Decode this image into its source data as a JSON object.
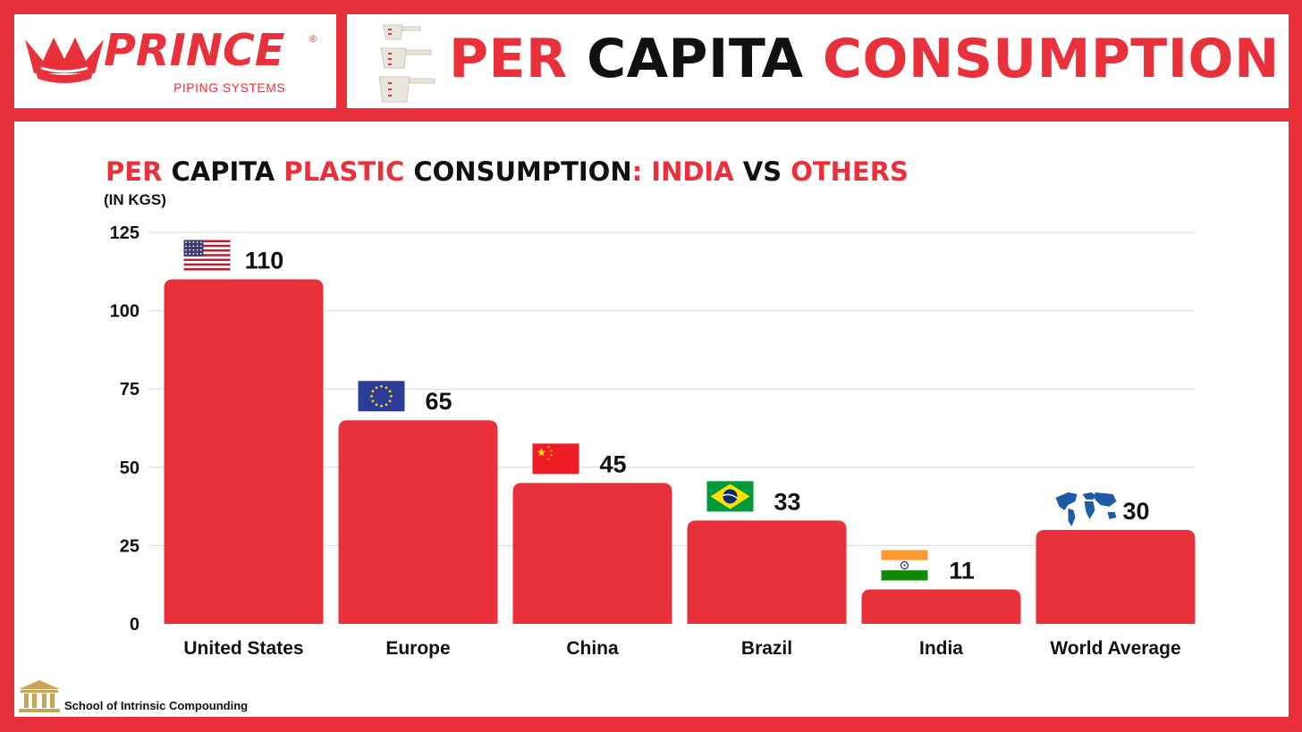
{
  "brand": {
    "name": "PRINCE",
    "registered": "®",
    "subtitle": "PIPING SYSTEMS"
  },
  "header": {
    "title_parts": [
      {
        "text": "PER ",
        "color": "#e8313a"
      },
      {
        "text": "CAPITA ",
        "color": "#111111"
      },
      {
        "text": "CONSUMPTION",
        "color": "#e8313a"
      }
    ]
  },
  "chart_title_parts": [
    {
      "text": "PER ",
      "color": "#e8313a"
    },
    {
      "text": "CAPITA ",
      "color": "#111111"
    },
    {
      "text": "PLASTIC ",
      "color": "#e8313a"
    },
    {
      "text": "CONSUMPTION",
      "color": "#111111"
    },
    {
      "text": ": INDIA ",
      "color": "#e8313a"
    },
    {
      "text": "VS ",
      "color": "#111111"
    },
    {
      "text": "OTHERS",
      "color": "#e8313a"
    }
  ],
  "chart_data": {
    "type": "bar",
    "title": "PER CAPITA PLASTIC CONSUMPTION: INDIA VS OTHERS",
    "ylabel": "(IN KGS)",
    "categories": [
      "United States",
      "Europe",
      "China",
      "Brazil",
      "India",
      "World Average"
    ],
    "values": [
      110,
      65,
      45,
      33,
      11,
      30
    ],
    "flags": [
      "us-flag-icon",
      "eu-flag-icon",
      "china-flag-icon",
      "brazil-flag-icon",
      "india-flag-icon",
      "world-map-icon"
    ],
    "ylim": [
      0,
      125
    ],
    "yticks": [
      0,
      25,
      50,
      75,
      100,
      125
    ],
    "grid": true,
    "bar_color": "#e8313a"
  },
  "footer": {
    "credit": "School of Intrinsic Compounding"
  },
  "colors": {
    "accent": "#e8313a",
    "text": "#111111",
    "grid": "#d9d9d9"
  }
}
